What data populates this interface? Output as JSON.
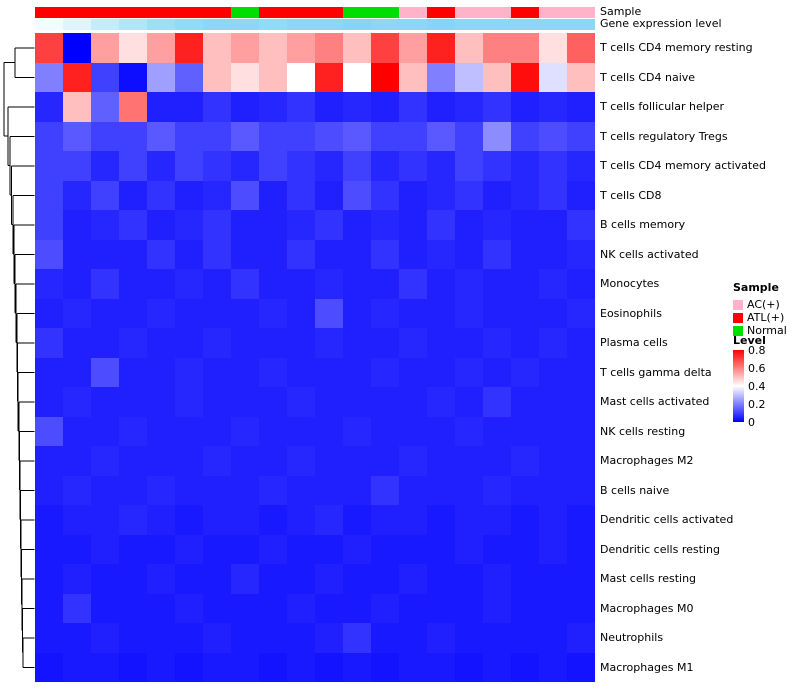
{
  "header": {
    "sample_annotation_label": "Sample",
    "gene_annotation_label": "Gene expression level"
  },
  "legend": {
    "sample": {
      "title": "Sample",
      "items": [
        {
          "label": "AC(+)",
          "color": "#FFB3C8"
        },
        {
          "label": "ATL(+)",
          "color": "#FF0000"
        },
        {
          "label": "Normal",
          "color": "#00DD00"
        }
      ]
    },
    "level": {
      "title": "Level",
      "ticks": [
        "0.8",
        "0.6",
        "0.4",
        "0.2",
        "0"
      ]
    }
  },
  "chart_data": {
    "type": "heatmap",
    "rows": [
      "T cells CD4 memory resting",
      "T cells CD4 naive",
      "T cells follicular helper",
      "T cells regulatory  Tregs",
      "T cells CD4 memory activated",
      "T cells CD8",
      "B cells memory",
      "NK cells activated",
      "Monocytes",
      "Eosinophils",
      "Plasma cells",
      "T cells gamma delta",
      "Mast cells activated",
      "NK cells resting",
      "Macrophages M2",
      "B cells naive",
      "Dendritic cells activated",
      "Dendritic cells resting",
      "Mast cells resting",
      "Macrophages M0",
      "Neutrophils",
      "Macrophages M1"
    ],
    "n_columns": 20,
    "value_range": [
      0,
      0.8
    ],
    "colormap": {
      "low": "#0000FF",
      "mid": "#FFFFFF",
      "high": "#FF0000",
      "mid_value": 0.4
    },
    "column_sample_groups": [
      "ATL(+)",
      "ATL(+)",
      "ATL(+)",
      "ATL(+)",
      "ATL(+)",
      "ATL(+)",
      "ATL(+)",
      "Normal",
      "ATL(+)",
      "ATL(+)",
      "ATL(+)",
      "Normal",
      "Normal",
      "AC(+)",
      "ATL(+)",
      "AC(+)",
      "AC(+)",
      "ATL(+)",
      "AC(+)",
      "AC(+)"
    ],
    "sample_colors": {
      "AC(+)": "#FFB3C8",
      "ATL(+)": "#FF0000",
      "Normal": "#00DD00"
    },
    "gene_expression_level": [
      0.1,
      0.25,
      0.45,
      0.6,
      0.75,
      0.85,
      0.9,
      0.9,
      0.85,
      0.9,
      0.9,
      0.95,
      0.9,
      0.9,
      0.95,
      0.9,
      0.9,
      0.9,
      0.9,
      0.9
    ],
    "gene_expression_colors": {
      "low": "#FFFFFF",
      "high": "#7FD4F3"
    },
    "values": [
      [
        0.7,
        0.0,
        0.55,
        0.45,
        0.55,
        0.75,
        0.5,
        0.55,
        0.5,
        0.55,
        0.6,
        0.5,
        0.7,
        0.55,
        0.75,
        0.5,
        0.6,
        0.6,
        0.45,
        0.65
      ],
      [
        0.2,
        0.75,
        0.1,
        0.02,
        0.25,
        0.15,
        0.5,
        0.45,
        0.5,
        0.4,
        0.75,
        0.4,
        0.8,
        0.5,
        0.2,
        0.3,
        0.5,
        0.78,
        0.35,
        0.5
      ],
      [
        0.06,
        0.5,
        0.15,
        0.62,
        0.05,
        0.05,
        0.08,
        0.05,
        0.06,
        0.08,
        0.05,
        0.06,
        0.05,
        0.08,
        0.05,
        0.06,
        0.08,
        0.05,
        0.06,
        0.05
      ],
      [
        0.1,
        0.14,
        0.1,
        0.1,
        0.14,
        0.1,
        0.1,
        0.14,
        0.1,
        0.1,
        0.12,
        0.14,
        0.1,
        0.1,
        0.14,
        0.1,
        0.22,
        0.1,
        0.12,
        0.1
      ],
      [
        0.1,
        0.1,
        0.06,
        0.1,
        0.06,
        0.1,
        0.08,
        0.06,
        0.1,
        0.08,
        0.06,
        0.1,
        0.06,
        0.08,
        0.06,
        0.1,
        0.08,
        0.06,
        0.08,
        0.06
      ],
      [
        0.1,
        0.06,
        0.1,
        0.05,
        0.08,
        0.05,
        0.06,
        0.12,
        0.05,
        0.08,
        0.05,
        0.12,
        0.08,
        0.05,
        0.06,
        0.08,
        0.05,
        0.06,
        0.08,
        0.05
      ],
      [
        0.1,
        0.05,
        0.06,
        0.08,
        0.05,
        0.06,
        0.08,
        0.05,
        0.05,
        0.06,
        0.08,
        0.05,
        0.06,
        0.05,
        0.08,
        0.05,
        0.06,
        0.05,
        0.05,
        0.08
      ],
      [
        0.12,
        0.05,
        0.05,
        0.05,
        0.08,
        0.05,
        0.08,
        0.05,
        0.05,
        0.08,
        0.05,
        0.05,
        0.08,
        0.05,
        0.06,
        0.05,
        0.08,
        0.05,
        0.05,
        0.06
      ],
      [
        0.06,
        0.05,
        0.08,
        0.05,
        0.05,
        0.06,
        0.05,
        0.08,
        0.05,
        0.05,
        0.06,
        0.05,
        0.05,
        0.08,
        0.05,
        0.06,
        0.05,
        0.05,
        0.06,
        0.05
      ],
      [
        0.05,
        0.06,
        0.05,
        0.05,
        0.06,
        0.05,
        0.05,
        0.05,
        0.06,
        0.05,
        0.12,
        0.05,
        0.06,
        0.05,
        0.05,
        0.06,
        0.05,
        0.05,
        0.05,
        0.06
      ],
      [
        0.08,
        0.05,
        0.05,
        0.06,
        0.05,
        0.05,
        0.06,
        0.05,
        0.05,
        0.05,
        0.06,
        0.05,
        0.05,
        0.06,
        0.05,
        0.05,
        0.06,
        0.05,
        0.06,
        0.05
      ],
      [
        0.05,
        0.05,
        0.12,
        0.05,
        0.05,
        0.06,
        0.05,
        0.05,
        0.06,
        0.05,
        0.05,
        0.05,
        0.06,
        0.05,
        0.05,
        0.06,
        0.05,
        0.06,
        0.05,
        0.05
      ],
      [
        0.05,
        0.06,
        0.05,
        0.05,
        0.05,
        0.06,
        0.05,
        0.05,
        0.05,
        0.06,
        0.05,
        0.05,
        0.05,
        0.05,
        0.06,
        0.05,
        0.08,
        0.05,
        0.05,
        0.05
      ],
      [
        0.12,
        0.05,
        0.05,
        0.06,
        0.05,
        0.05,
        0.05,
        0.06,
        0.05,
        0.05,
        0.05,
        0.06,
        0.05,
        0.05,
        0.05,
        0.06,
        0.05,
        0.05,
        0.05,
        0.05
      ],
      [
        0.05,
        0.05,
        0.06,
        0.05,
        0.05,
        0.05,
        0.06,
        0.05,
        0.05,
        0.06,
        0.05,
        0.05,
        0.05,
        0.06,
        0.05,
        0.05,
        0.05,
        0.06,
        0.05,
        0.05
      ],
      [
        0.05,
        0.06,
        0.05,
        0.05,
        0.06,
        0.05,
        0.05,
        0.05,
        0.06,
        0.05,
        0.05,
        0.05,
        0.08,
        0.05,
        0.05,
        0.05,
        0.06,
        0.05,
        0.05,
        0.05
      ],
      [
        0.04,
        0.05,
        0.05,
        0.06,
        0.05,
        0.04,
        0.05,
        0.05,
        0.04,
        0.05,
        0.06,
        0.04,
        0.05,
        0.05,
        0.04,
        0.05,
        0.05,
        0.04,
        0.05,
        0.04
      ],
      [
        0.04,
        0.04,
        0.05,
        0.04,
        0.04,
        0.05,
        0.04,
        0.04,
        0.05,
        0.04,
        0.04,
        0.05,
        0.04,
        0.04,
        0.04,
        0.05,
        0.04,
        0.04,
        0.05,
        0.04
      ],
      [
        0.04,
        0.05,
        0.04,
        0.04,
        0.05,
        0.04,
        0.04,
        0.06,
        0.04,
        0.04,
        0.05,
        0.04,
        0.04,
        0.05,
        0.04,
        0.04,
        0.05,
        0.04,
        0.04,
        0.04
      ],
      [
        0.04,
        0.08,
        0.04,
        0.04,
        0.04,
        0.05,
        0.04,
        0.04,
        0.04,
        0.05,
        0.04,
        0.04,
        0.05,
        0.04,
        0.04,
        0.04,
        0.05,
        0.04,
        0.04,
        0.04
      ],
      [
        0.04,
        0.04,
        0.05,
        0.04,
        0.04,
        0.04,
        0.05,
        0.04,
        0.04,
        0.04,
        0.05,
        0.08,
        0.04,
        0.04,
        0.05,
        0.04,
        0.04,
        0.04,
        0.04,
        0.05
      ],
      [
        0.03,
        0.04,
        0.04,
        0.03,
        0.04,
        0.03,
        0.04,
        0.04,
        0.03,
        0.04,
        0.03,
        0.04,
        0.03,
        0.04,
        0.04,
        0.03,
        0.04,
        0.03,
        0.04,
        0.03
      ]
    ]
  }
}
